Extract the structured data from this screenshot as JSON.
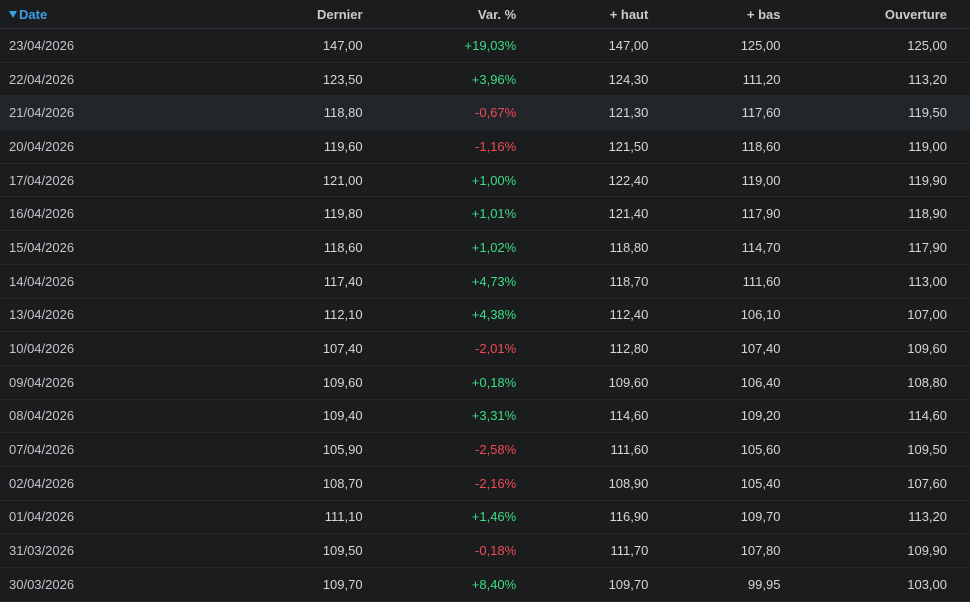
{
  "columns": {
    "date": "Date",
    "last": "Dernier",
    "change": "Var. %",
    "high": "+ haut",
    "low": "+ bas",
    "open": "Ouverture"
  },
  "sort_icon": "sort-desc-triangle-icon",
  "colors": {
    "accent": "#3aa0e6",
    "positive": "#3ddc84",
    "negative": "#f04a55",
    "background": "#1a1c1e"
  },
  "rows": [
    {
      "date": "23/04/2026",
      "last": "147,00",
      "change": "+19,03%",
      "high": "147,00",
      "low": "125,00",
      "open": "125,00"
    },
    {
      "date": "22/04/2026",
      "last": "123,50",
      "change": "+3,96%",
      "high": "124,30",
      "low": "111,20",
      "open": "113,20"
    },
    {
      "date": "21/04/2026",
      "last": "118,80",
      "change": "-0,67%",
      "high": "121,30",
      "low": "117,60",
      "open": "119,50"
    },
    {
      "date": "20/04/2026",
      "last": "119,60",
      "change": "-1,16%",
      "high": "121,50",
      "low": "118,60",
      "open": "119,00"
    },
    {
      "date": "17/04/2026",
      "last": "121,00",
      "change": "+1,00%",
      "high": "122,40",
      "low": "119,00",
      "open": "119,90"
    },
    {
      "date": "16/04/2026",
      "last": "119,80",
      "change": "+1,01%",
      "high": "121,40",
      "low": "117,90",
      "open": "118,90"
    },
    {
      "date": "15/04/2026",
      "last": "118,60",
      "change": "+1,02%",
      "high": "118,80",
      "low": "114,70",
      "open": "117,90"
    },
    {
      "date": "14/04/2026",
      "last": "117,40",
      "change": "+4,73%",
      "high": "118,70",
      "low": "111,60",
      "open": "113,00"
    },
    {
      "date": "13/04/2026",
      "last": "112,10",
      "change": "+4,38%",
      "high": "112,40",
      "low": "106,10",
      "open": "107,00"
    },
    {
      "date": "10/04/2026",
      "last": "107,40",
      "change": "-2,01%",
      "high": "112,80",
      "low": "107,40",
      "open": "109,60"
    },
    {
      "date": "09/04/2026",
      "last": "109,60",
      "change": "+0,18%",
      "high": "109,60",
      "low": "106,40",
      "open": "108,80"
    },
    {
      "date": "08/04/2026",
      "last": "109,40",
      "change": "+3,31%",
      "high": "114,60",
      "low": "109,20",
      "open": "114,60"
    },
    {
      "date": "07/04/2026",
      "last": "105,90",
      "change": "-2,58%",
      "high": "111,60",
      "low": "105,60",
      "open": "109,50"
    },
    {
      "date": "02/04/2026",
      "last": "108,70",
      "change": "-2,16%",
      "high": "108,90",
      "low": "105,40",
      "open": "107,60"
    },
    {
      "date": "01/04/2026",
      "last": "111,10",
      "change": "+1,46%",
      "high": "116,90",
      "low": "109,70",
      "open": "113,20"
    },
    {
      "date": "31/03/2026",
      "last": "109,50",
      "change": "-0,18%",
      "high": "111,70",
      "low": "107,80",
      "open": "109,90"
    },
    {
      "date": "30/03/2026",
      "last": "109,70",
      "change": "+8,40%",
      "high": "109,70",
      "low": "99,95",
      "open": "103,00"
    }
  ]
}
